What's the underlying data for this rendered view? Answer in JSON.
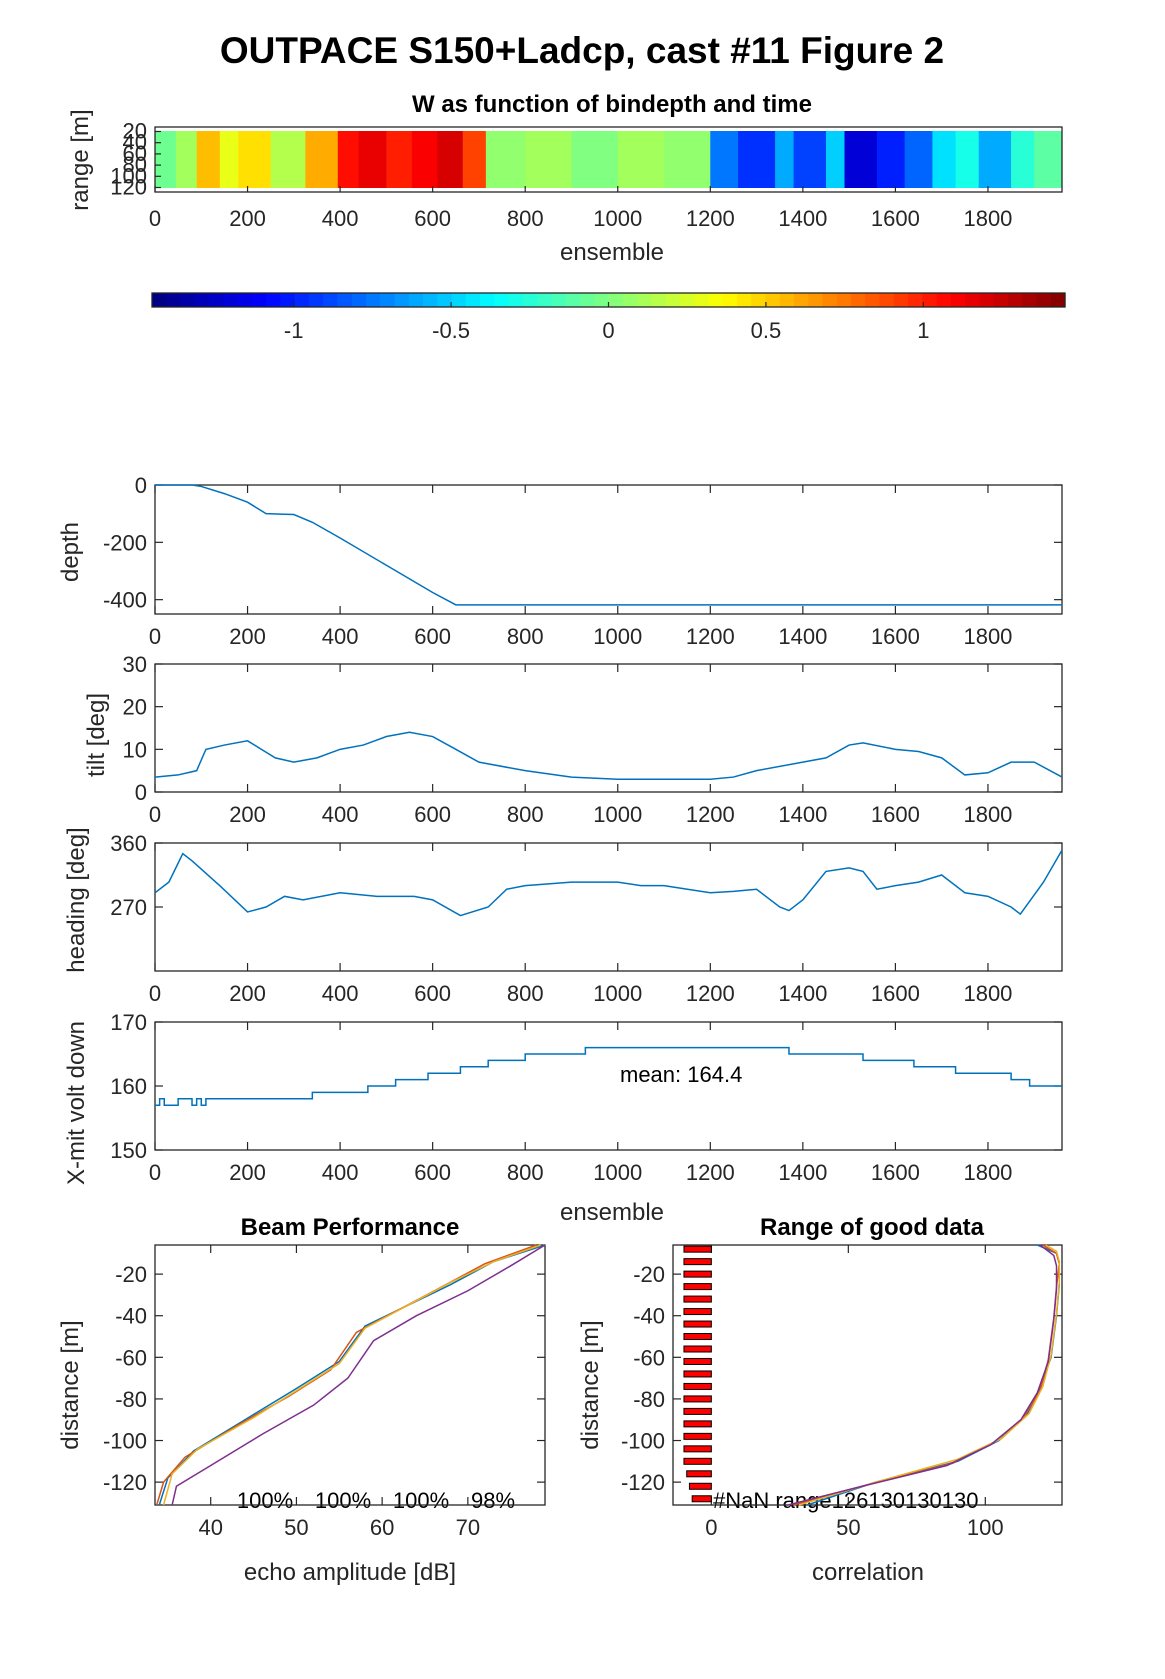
{
  "figure": {
    "title": "OUTPACE S150+Ladcp, cast #11 Figure 2"
  },
  "chart_data": [
    {
      "id": "w-image",
      "type": "heatmap",
      "title": "W as function of bindepth and time",
      "xlabel": "ensemble",
      "ylabel": "range [m]",
      "xlim": [
        0,
        1960
      ],
      "xticks": [
        "0",
        "200",
        "400",
        "600",
        "800",
        "1000",
        "1200",
        "1400",
        "1600",
        "1800"
      ],
      "yticks": [
        "20",
        "40",
        "60",
        "80",
        "100",
        "120"
      ],
      "ylim": [
        12,
        128
      ],
      "blocks": [
        {
          "x0": 0,
          "x1": 45,
          "w": -0.05
        },
        {
          "x0": 45,
          "x1": 90,
          "w": 0.1
        },
        {
          "x0": 90,
          "x1": 140,
          "w": 0.55
        },
        {
          "x0": 140,
          "x1": 180,
          "w": 0.3
        },
        {
          "x0": 180,
          "x1": 250,
          "w": 0.45
        },
        {
          "x0": 250,
          "x1": 325,
          "w": 0.15
        },
        {
          "x0": 325,
          "x1": 395,
          "w": 0.6
        },
        {
          "x0": 395,
          "x1": 440,
          "w": 1.05
        },
        {
          "x0": 440,
          "x1": 500,
          "w": 1.15
        },
        {
          "x0": 500,
          "x1": 555,
          "w": 1.0
        },
        {
          "x0": 555,
          "x1": 610,
          "w": 1.1
        },
        {
          "x0": 610,
          "x1": 665,
          "w": 1.2
        },
        {
          "x0": 665,
          "x1": 715,
          "w": 0.9
        },
        {
          "x0": 715,
          "x1": 800,
          "w": 0.05
        },
        {
          "x0": 800,
          "x1": 900,
          "w": 0.1
        },
        {
          "x0": 900,
          "x1": 1000,
          "w": 0.0
        },
        {
          "x0": 1000,
          "x1": 1100,
          "w": 0.1
        },
        {
          "x0": 1100,
          "x1": 1200,
          "w": 0.05
        },
        {
          "x0": 1200,
          "x1": 1260,
          "w": -0.75
        },
        {
          "x0": 1260,
          "x1": 1340,
          "w": -0.95
        },
        {
          "x0": 1340,
          "x1": 1380,
          "w": -0.6
        },
        {
          "x0": 1380,
          "x1": 1450,
          "w": -0.9
        },
        {
          "x0": 1450,
          "x1": 1490,
          "w": -0.5
        },
        {
          "x0": 1490,
          "x1": 1560,
          "w": -1.2
        },
        {
          "x0": 1560,
          "x1": 1620,
          "w": -1.0
        },
        {
          "x0": 1620,
          "x1": 1680,
          "w": -0.8
        },
        {
          "x0": 1680,
          "x1": 1730,
          "w": -0.45
        },
        {
          "x0": 1730,
          "x1": 1780,
          "w": -0.3
        },
        {
          "x0": 1780,
          "x1": 1850,
          "w": -0.6
        },
        {
          "x0": 1850,
          "x1": 1900,
          "w": -0.25
        },
        {
          "x0": 1900,
          "x1": 1960,
          "w": -0.1
        }
      ]
    },
    {
      "id": "colorbar",
      "type": "colorbar",
      "clim": [
        -1.45,
        1.45
      ],
      "ticks": [
        -1,
        -0.5,
        0,
        0.5,
        1
      ],
      "ticklabels": [
        "-1",
        "-0.5",
        "0",
        "0.5",
        "1"
      ]
    },
    {
      "id": "depth",
      "type": "line",
      "ylabel": "depth",
      "xlim": [
        0,
        1960
      ],
      "ylim": [
        -450,
        0
      ],
      "yticks": [
        "0",
        "-200",
        "-400"
      ],
      "xticks": [
        "0",
        "200",
        "400",
        "600",
        "800",
        "1000",
        "1200",
        "1400",
        "1600",
        "1800"
      ],
      "color": "#0072bd",
      "x": [
        0,
        80,
        100,
        150,
        200,
        240,
        280,
        300,
        340,
        400,
        500,
        600,
        650,
        1960
      ],
      "y": [
        0,
        0,
        -5,
        -30,
        -60,
        -100,
        -102,
        -103,
        -130,
        -185,
        -280,
        -375,
        -418,
        -418
      ]
    },
    {
      "id": "tilt",
      "type": "line",
      "ylabel": "tilt [deg]",
      "xlim": [
        0,
        1960
      ],
      "ylim": [
        0,
        30
      ],
      "yticks": [
        "0",
        "10",
        "20",
        "30"
      ],
      "xticks": [
        "0",
        "200",
        "400",
        "600",
        "800",
        "1000",
        "1200",
        "1400",
        "1600",
        "1800"
      ],
      "color": "#0072bd",
      "x": [
        0,
        50,
        90,
        110,
        150,
        200,
        230,
        260,
        300,
        350,
        400,
        450,
        500,
        550,
        600,
        650,
        700,
        800,
        900,
        1000,
        1100,
        1200,
        1250,
        1300,
        1400,
        1450,
        1500,
        1530,
        1600,
        1650,
        1700,
        1750,
        1800,
        1850,
        1900,
        1960
      ],
      "y": [
        3.5,
        4,
        5,
        10,
        11,
        12,
        10,
        8,
        7,
        8,
        10,
        11,
        13,
        14,
        13,
        10,
        7,
        5,
        3.5,
        3,
        3,
        3,
        3.5,
        5,
        7,
        8,
        11,
        11.5,
        10,
        9.5,
        8,
        4,
        4.5,
        7,
        7,
        3.5
      ]
    },
    {
      "id": "heading",
      "type": "line",
      "ylabel": "heading [deg]",
      "xlim": [
        0,
        1960
      ],
      "ylim": [
        180,
        360
      ],
      "yticks": [
        "270",
        "360"
      ],
      "xticks": [
        "0",
        "200",
        "400",
        "600",
        "800",
        "1000",
        "1200",
        "1400",
        "1600",
        "1800"
      ],
      "color": "#0072bd",
      "x": [
        0,
        30,
        60,
        80,
        140,
        200,
        240,
        280,
        320,
        400,
        480,
        560,
        600,
        660,
        720,
        760,
        800,
        900,
        1000,
        1050,
        1100,
        1200,
        1250,
        1300,
        1350,
        1370,
        1400,
        1450,
        1500,
        1530,
        1560,
        1600,
        1650,
        1700,
        1750,
        1800,
        1850,
        1870,
        1920,
        1960
      ],
      "y": [
        290,
        305,
        345,
        335,
        300,
        263,
        270,
        285,
        280,
        290,
        285,
        285,
        280,
        258,
        270,
        295,
        300,
        305,
        305,
        300,
        300,
        290,
        292,
        295,
        270,
        265,
        280,
        320,
        325,
        320,
        295,
        300,
        305,
        315,
        290,
        285,
        270,
        260,
        305,
        350
      ]
    },
    {
      "id": "xmit",
      "type": "line",
      "step": true,
      "ylabel": "X-mit volt down",
      "xlabel": "ensemble",
      "annotation": "mean: 164.4",
      "xlim": [
        0,
        1960
      ],
      "ylim": [
        150,
        170
      ],
      "yticks": [
        "150",
        "160",
        "170"
      ],
      "xticks": [
        "0",
        "200",
        "400",
        "600",
        "800",
        "1000",
        "1200",
        "1400",
        "1600",
        "1800"
      ],
      "color": "#0072bd",
      "x": [
        0,
        10,
        20,
        30,
        50,
        60,
        80,
        90,
        100,
        110,
        120,
        340,
        460,
        520,
        590,
        660,
        720,
        800,
        930,
        1370,
        1530,
        1640,
        1730,
        1850,
        1890,
        1960
      ],
      "y": [
        157,
        158,
        157,
        157,
        158,
        158,
        157,
        158,
        157,
        158,
        158,
        159,
        160,
        161,
        162,
        163,
        164,
        165,
        166,
        165,
        164,
        163,
        162,
        161,
        160,
        160
      ]
    },
    {
      "id": "beam",
      "type": "line",
      "title": "Beam Performance",
      "xlabel": "echo amplitude [dB]",
      "ylabel": "distance [m]",
      "xlim": [
        33.5,
        79
      ],
      "ylim": [
        -131,
        -6
      ],
      "xticks": [
        "40",
        "50",
        "60",
        "70"
      ],
      "yticks": [
        "-20",
        "-40",
        "-60",
        "-80",
        "-100",
        "-120"
      ],
      "percent_labels": [
        "100%",
        "100%",
        "100%",
        "98%"
      ],
      "series": [
        {
          "color": "#0072bd",
          "x": [
            34,
            35,
            38,
            44,
            50,
            55,
            58,
            63,
            68,
            73,
            79
          ],
          "y": [
            -131,
            -118,
            -105,
            -90,
            -75,
            -62,
            -45,
            -35,
            -25,
            -14,
            -6
          ]
        },
        {
          "color": "#d95319",
          "x": [
            33.7,
            34.5,
            37,
            43,
            49,
            54,
            57,
            62,
            67,
            72,
            78
          ],
          "y": [
            -131,
            -120,
            -108,
            -93,
            -79,
            -66,
            -48,
            -37,
            -26,
            -15,
            -6
          ]
        },
        {
          "color": "#edb120",
          "x": [
            34.5,
            35.5,
            38.5,
            45,
            50,
            55,
            58,
            63,
            68,
            73,
            78.5
          ],
          "y": [
            -131,
            -116,
            -104,
            -89,
            -76,
            -63,
            -46,
            -35,
            -24,
            -14,
            -6
          ]
        },
        {
          "color": "#7e2f8e",
          "x": [
            35.5,
            36,
            40,
            46,
            52,
            56,
            59,
            64,
            70,
            75,
            79
          ],
          "y": [
            -131,
            -122,
            -112,
            -97,
            -83,
            -70,
            -52,
            -40,
            -28,
            -16,
            -6
          ]
        }
      ]
    },
    {
      "id": "correlation",
      "type": "line",
      "title": "Range of good data",
      "xlabel": "correlation",
      "ylabel": "distance [m]",
      "annotation": "#NaN range126130130130",
      "xlim": [
        -14,
        128
      ],
      "ylim": [
        -131,
        -6
      ],
      "xticks": [
        "0",
        "50",
        "100"
      ],
      "yticks": [
        "-20",
        "-40",
        "-60",
        "-80",
        "-100",
        "-120"
      ],
      "bar_color": "#ff0000",
      "bars": [
        {
          "y": -8,
          "x": -10
        },
        {
          "y": -14,
          "x": -10
        },
        {
          "y": -20,
          "x": -10
        },
        {
          "y": -26,
          "x": -10
        },
        {
          "y": -32,
          "x": -10
        },
        {
          "y": -38,
          "x": -10
        },
        {
          "y": -44,
          "x": -10
        },
        {
          "y": -50,
          "x": -10
        },
        {
          "y": -56,
          "x": -10
        },
        {
          "y": -62,
          "x": -10
        },
        {
          "y": -68,
          "x": -10
        },
        {
          "y": -74,
          "x": -10
        },
        {
          "y": -80,
          "x": -10
        },
        {
          "y": -86,
          "x": -10
        },
        {
          "y": -92,
          "x": -10
        },
        {
          "y": -98,
          "x": -10
        },
        {
          "y": -104,
          "x": -10
        },
        {
          "y": -110,
          "x": -10
        },
        {
          "y": -116,
          "x": -9
        },
        {
          "y": -122,
          "x": -8
        },
        {
          "y": -128,
          "x": -7
        }
      ],
      "series": [
        {
          "color": "#0072bd",
          "x": [
            35,
            60,
            90,
            105,
            115,
            120,
            124,
            126,
            127,
            127,
            126,
            119
          ],
          "y": [
            -131,
            -120,
            -110,
            -100,
            -88,
            -75,
            -60,
            -40,
            -25,
            -15,
            -10,
            -6
          ]
        },
        {
          "color": "#d95319",
          "x": [
            30,
            58,
            88,
            103,
            114,
            120,
            123,
            125,
            126,
            127,
            126,
            121
          ],
          "y": [
            -131,
            -121,
            -111,
            -101,
            -89,
            -76,
            -61,
            -41,
            -26,
            -15,
            -10,
            -6
          ]
        },
        {
          "color": "#edb120",
          "x": [
            32,
            60,
            90,
            106,
            116,
            121,
            124,
            126,
            127,
            127,
            126,
            122
          ],
          "y": [
            -131,
            -120,
            -109,
            -99,
            -87,
            -74,
            -59,
            -39,
            -24,
            -14,
            -9,
            -6
          ]
        },
        {
          "color": "#7e2f8e",
          "x": [
            28,
            55,
            86,
            102,
            113,
            119,
            123,
            125,
            126,
            126,
            125,
            120
          ],
          "y": [
            -131,
            -122,
            -112,
            -102,
            -90,
            -77,
            -62,
            -42,
            -27,
            -16,
            -11,
            -6
          ]
        }
      ]
    }
  ]
}
